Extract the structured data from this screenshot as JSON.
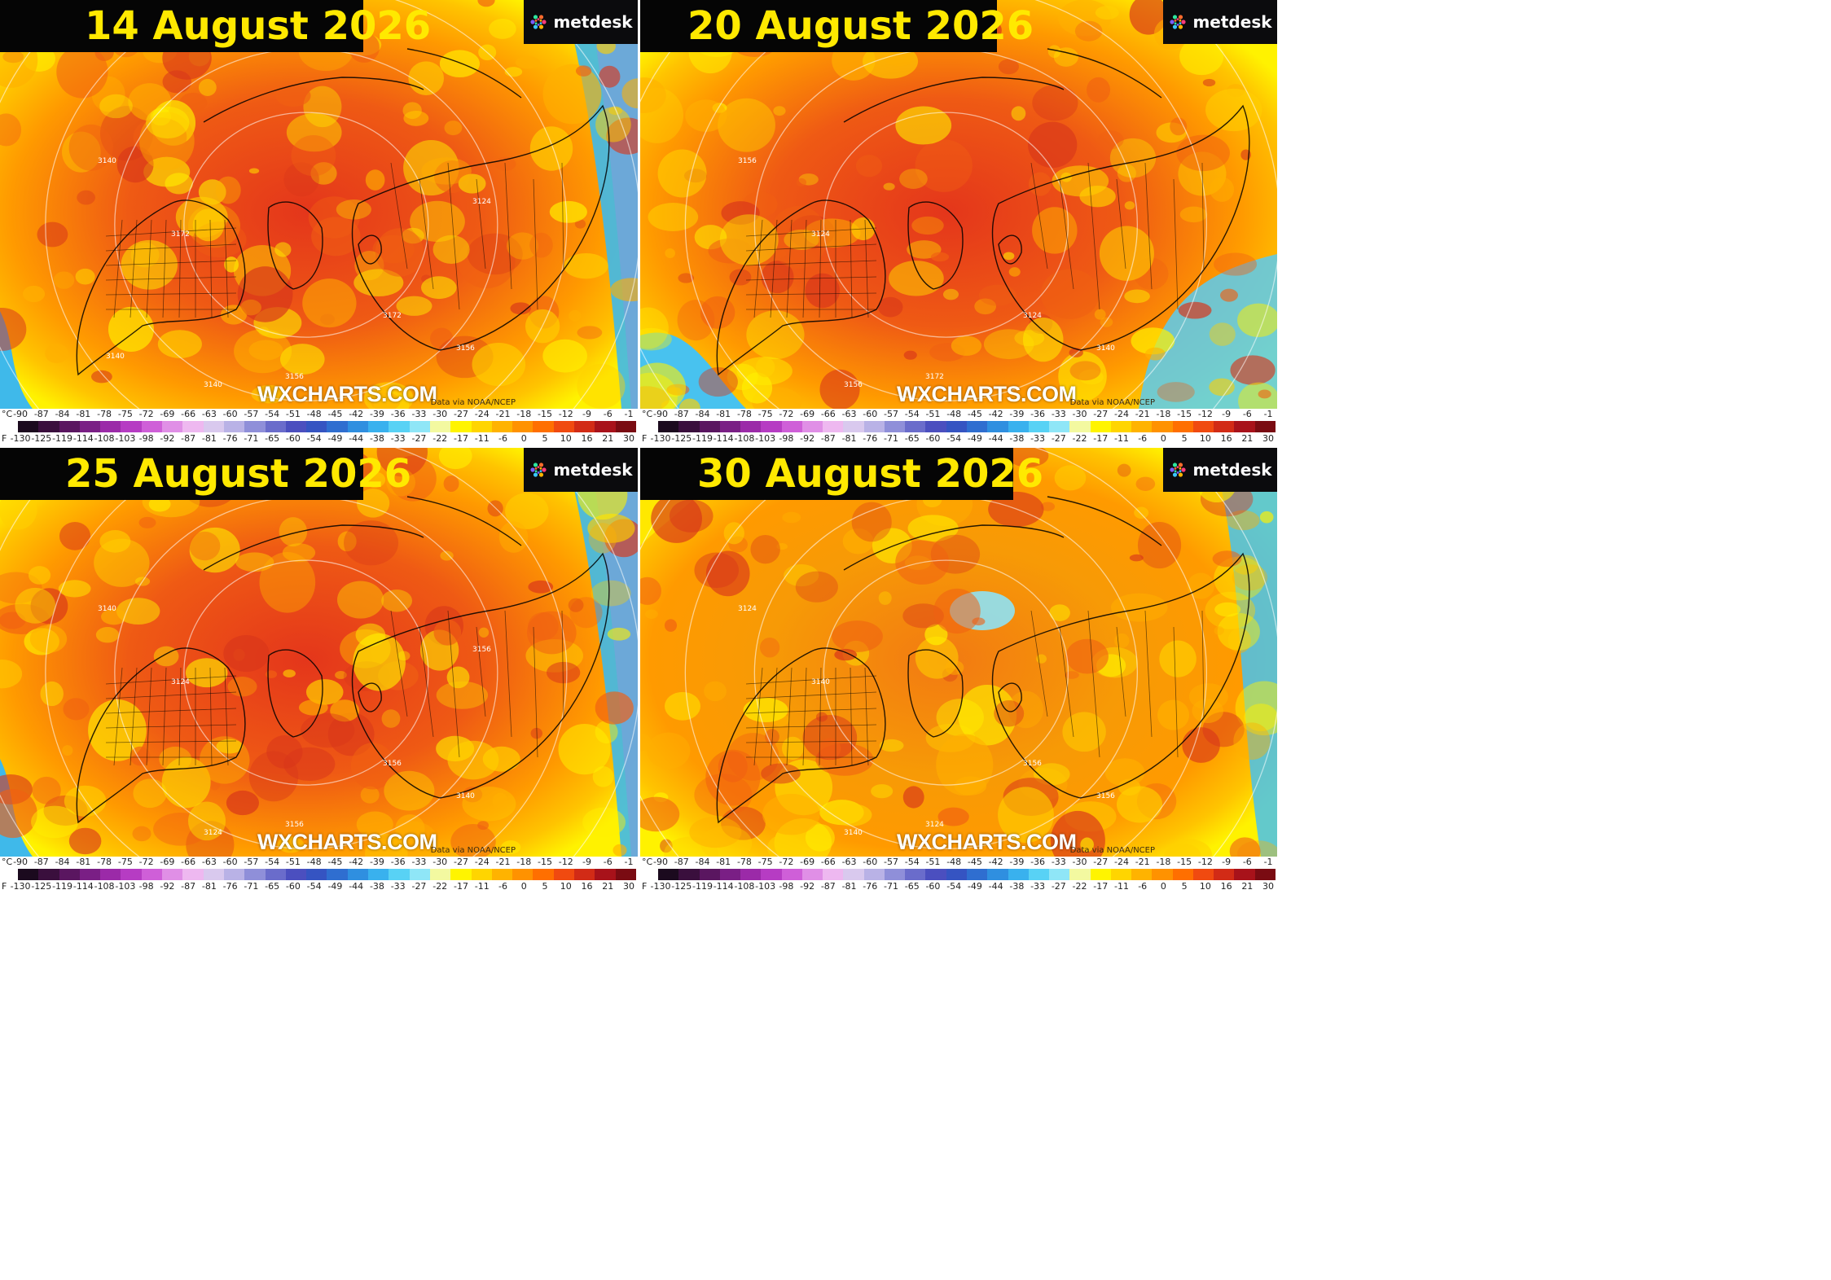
{
  "panels": [
    {
      "date": "14 August 2026",
      "variant": 0
    },
    {
      "date": "20 August 2026",
      "variant": 1
    },
    {
      "date": "25 August 2026",
      "variant": 2
    },
    {
      "date": "30 August 2026",
      "variant": 3
    }
  ],
  "logo_text": "metdesk",
  "watermark": "WXCHARTS.COM",
  "credit": "Data via NOAA/NCEP",
  "legend": {
    "celsius_unit": "°C",
    "fahrenheit_unit": "F",
    "celsius_ticks": [
      "-90",
      "-87",
      "-84",
      "-81",
      "-78",
      "-75",
      "-72",
      "-69",
      "-66",
      "-63",
      "-60",
      "-57",
      "-54",
      "-51",
      "-48",
      "-45",
      "-42",
      "-39",
      "-36",
      "-33",
      "-30",
      "-27",
      "-24",
      "-21",
      "-18",
      "-15",
      "-12",
      "-9",
      "-6",
      "-1"
    ],
    "fahrenheit_ticks": [
      "-130",
      "-125",
      "-119",
      "-114",
      "-108",
      "-103",
      "-98",
      "-92",
      "-87",
      "-81",
      "-76",
      "-71",
      "-65",
      "-60",
      "-54",
      "-49",
      "-44",
      "-38",
      "-33",
      "-27",
      "-22",
      "-17",
      "-11",
      "-6",
      "0",
      "5",
      "10",
      "16",
      "21",
      "30"
    ],
    "colors": [
      "#1b0a1e",
      "#3a0f3d",
      "#5a1660",
      "#7a1f85",
      "#9b2aa8",
      "#b63cc3",
      "#cf5fd8",
      "#e08fe6",
      "#eeb8f0",
      "#d9c9ee",
      "#b9b2e6",
      "#8f8fd9",
      "#6a6ccb",
      "#4b4fbf",
      "#3554c2",
      "#2f6ed0",
      "#2f8fe0",
      "#39b1ee",
      "#58d2f5",
      "#8fe6f7",
      "#f3f9a0",
      "#fff400",
      "#ffd500",
      "#ffb300",
      "#ff9200",
      "#ff6f00",
      "#f04a10",
      "#d22b16",
      "#a8121a",
      "#7a0b12"
    ]
  },
  "contour_labels": {
    "p0": [
      "3140",
      "3156",
      "3172",
      "3172",
      "3140",
      "3156",
      "3124",
      "3140"
    ],
    "p1": [
      "3156",
      "3172",
      "3124",
      "3124",
      "3156",
      "3140"
    ],
    "p2": [
      "3140",
      "3156",
      "3124",
      "3156",
      "3124",
      "3140",
      "3156"
    ],
    "p3": [
      "3124",
      "3124",
      "3140",
      "3156",
      "3140",
      "3156"
    ]
  }
}
